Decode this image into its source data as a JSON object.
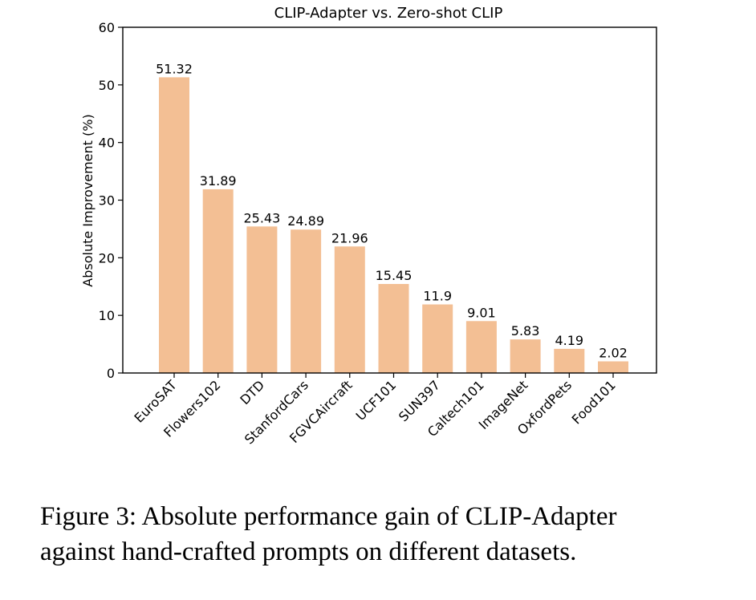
{
  "chart_data": {
    "type": "bar",
    "title": "CLIP-Adapter vs. Zero-shot CLIP",
    "xlabel": "",
    "ylabel": "Absolute Improvement (%)",
    "categories": [
      "EuroSAT",
      "Flowers102",
      "DTD",
      "StanfordCars",
      "FGVCAircraft",
      "UCF101",
      "SUN397",
      "Caltech101",
      "ImageNet",
      "OxfordPets",
      "Food101"
    ],
    "values": [
      51.32,
      31.89,
      25.43,
      24.89,
      21.96,
      15.45,
      11.9,
      9.01,
      5.83,
      4.19,
      2.02
    ],
    "value_labels": [
      "51.32",
      "31.89",
      "25.43",
      "24.89",
      "21.96",
      "15.45",
      "11.9",
      "9.01",
      "5.83",
      "4.19",
      "2.02"
    ],
    "ylim": [
      0,
      60
    ],
    "yticks": [
      "0",
      "10",
      "20",
      "30",
      "40",
      "50",
      "60"
    ],
    "bar_color": "#f3bf94",
    "grid": false
  },
  "caption": {
    "line1": "Figure 3: Absolute performance gain of CLIP-Adapter",
    "line2": "against hand-crafted prompts on different datasets."
  }
}
